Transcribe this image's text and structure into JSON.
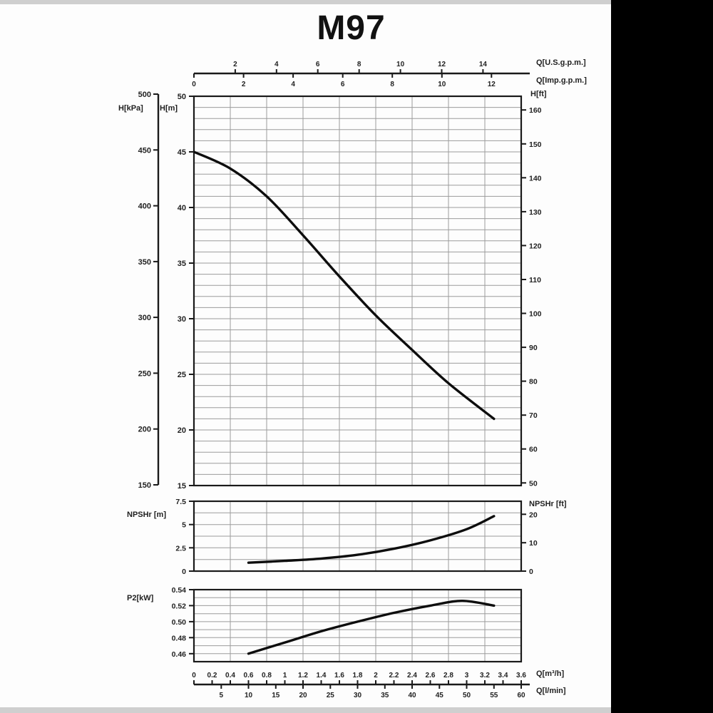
{
  "page": {
    "title": "M97"
  },
  "labels": {
    "h_kpa": "H[kPa]",
    "h_m": "H[m]",
    "h_ft": "H[ft]",
    "q_usgpm": "Q[U.S.g.p.m.]",
    "q_impgpm": "Q[Imp.g.p.m.]",
    "npshr_m": "NPSHr [m]",
    "npshr_ft": "NPSHr [ft]",
    "p2_kw": "P2[kW]",
    "q_m3h": "Q[m³/h]",
    "q_lmin": "Q[l/min]"
  },
  "colors": {
    "ink": "#1f1f1f",
    "border": "#1a1a1a",
    "grid": "#9b9b9b",
    "curve": "#0d0d0d",
    "band": "#000000"
  },
  "chart_data": [
    {
      "type": "line",
      "name": "head_curve",
      "title": "M97",
      "xlabel": "Q[m³/h]",
      "ylabel": "H[m]",
      "xlim": [
        0,
        3.6
      ],
      "ylim": [
        15,
        50
      ],
      "grid": {
        "x_step": 0.4,
        "y_step": 1
      },
      "legend": "none",
      "series": [
        {
          "name": "H-Q",
          "points": [
            [
              0,
              45
            ],
            [
              0.4,
              43.5
            ],
            [
              0.8,
              41
            ],
            [
              1.2,
              37.5
            ],
            [
              1.6,
              33.8
            ],
            [
              2.0,
              30.3
            ],
            [
              2.4,
              27.2
            ],
            [
              2.8,
              24.2
            ],
            [
              3.3,
              21
            ]
          ]
        }
      ]
    },
    {
      "type": "line",
      "name": "npshr_curve",
      "xlabel": "Q[m³/h]",
      "ylabel": "NPSHr [m]",
      "xlim": [
        0,
        3.6
      ],
      "ylim": [
        0,
        7.5
      ],
      "grid": {
        "x_step": 0.4,
        "y_step": 1.25
      },
      "legend": "none",
      "series": [
        {
          "name": "NPSHr",
          "points": [
            [
              0.6,
              0.9
            ],
            [
              1.0,
              1.1
            ],
            [
              1.4,
              1.35
            ],
            [
              1.8,
              1.75
            ],
            [
              2.2,
              2.4
            ],
            [
              2.6,
              3.3
            ],
            [
              3.0,
              4.5
            ],
            [
              3.3,
              5.9
            ]
          ]
        }
      ]
    },
    {
      "type": "line",
      "name": "power_curve",
      "xlabel": "Q[m³/h]",
      "ylabel": "P2[kW]",
      "xlim": [
        0,
        3.6
      ],
      "ylim": [
        0.45,
        0.54
      ],
      "grid": {
        "x_step": 0.4,
        "y_step": 0.01
      },
      "legend": "none",
      "series": [
        {
          "name": "P2",
          "points": [
            [
              0.6,
              0.46
            ],
            [
              1.0,
              0.474
            ],
            [
              1.4,
              0.488
            ],
            [
              1.8,
              0.5
            ],
            [
              2.2,
              0.511
            ],
            [
              2.6,
              0.52
            ],
            [
              2.95,
              0.526
            ],
            [
              3.3,
              0.52
            ]
          ]
        }
      ]
    }
  ],
  "scales": {
    "h_m_ticks": [
      50,
      45,
      40,
      35,
      30,
      25,
      20,
      15
    ],
    "h_kpa_ticks": [
      500,
      450,
      400,
      350,
      300,
      250,
      200,
      150
    ],
    "h_ft_ticks": [
      160,
      150,
      140,
      130,
      120,
      110,
      100,
      90,
      80,
      70,
      60,
      50
    ],
    "q_usgpm_ticks": [
      2,
      4,
      6,
      8,
      10,
      12,
      14
    ],
    "q_impgpm_ticks": [
      0,
      2,
      4,
      6,
      8,
      10,
      12
    ],
    "q_m3h_ticks": [
      "0",
      "0.2",
      "0.4",
      "0.6",
      "0.8",
      "1",
      "1.2",
      "1.4",
      "1.6",
      "1.8",
      "2",
      "2.2",
      "2.4",
      "2.6",
      "2.8",
      "3",
      "3.2",
      "3.4",
      "3.6"
    ],
    "q_lmin_ticks": [
      5,
      10,
      15,
      20,
      25,
      30,
      35,
      40,
      45,
      50,
      55,
      60
    ],
    "npshr_m_ticks": [
      "7.5",
      "5",
      "2.5",
      "0"
    ],
    "npshr_ft_ticks": [
      20,
      10,
      0
    ],
    "p2_ticks": [
      "0.54",
      "0.52",
      "0.50",
      "0.48",
      "0.46"
    ],
    "conversions": {
      "usgpm_to_m3h": 0.22712,
      "impgpm_to_m3h": 0.27276,
      "lmin_to_m3h": 0.06,
      "ft_to_m": 0.3048
    }
  }
}
